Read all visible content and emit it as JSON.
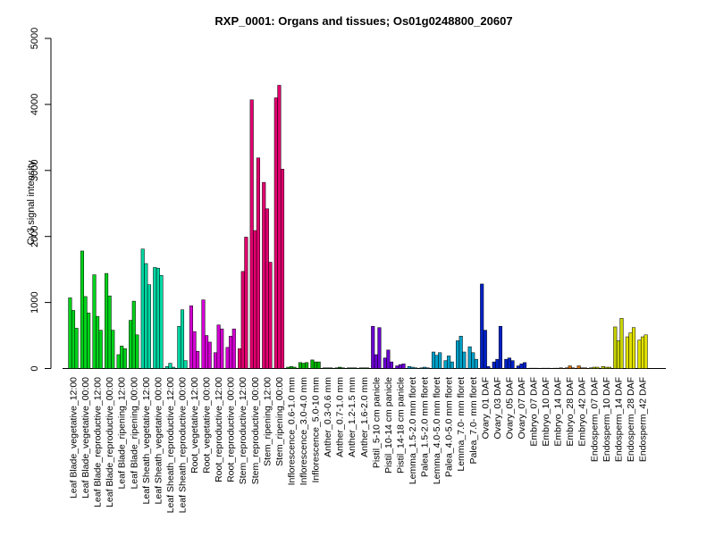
{
  "chart_data": {
    "type": "bar",
    "title": "RXP_0001: Organs and tissues; Os01g0248800_20607",
    "xlabel": "",
    "ylabel": "Cy3 signal intensity",
    "ylim": [
      0,
      5000
    ],
    "yticks": [
      0,
      1000,
      2000,
      3000,
      4000,
      5000
    ],
    "grid": false,
    "groups": [
      {
        "label": "Leaf Blade_vegetative_12:00",
        "color": "#00d21a",
        "values": [
          1070,
          880,
          610
        ]
      },
      {
        "label": "Leaf Blade_vegetative_00:00",
        "color": "#00d21a",
        "values": [
          1780,
          1090,
          840
        ]
      },
      {
        "label": "Leaf Blade_reproductive_12:00",
        "color": "#00d21a",
        "values": [
          1420,
          790,
          580
        ]
      },
      {
        "label": "Leaf Blade_reproductive_00:00",
        "color": "#00d21a",
        "values": [
          1440,
          1100,
          580
        ]
      },
      {
        "label": "Leaf Blade_ripening_12:00",
        "color": "#00d21a",
        "values": [
          210,
          340,
          300
        ]
      },
      {
        "label": "Leaf Blade_ripening_00:00",
        "color": "#00d21a",
        "values": [
          730,
          1020,
          510
        ]
      },
      {
        "label": "Leaf Sheath_vegetative_12:00",
        "color": "#00d6a2",
        "values": [
          1810,
          1590,
          1270
        ]
      },
      {
        "label": "Leaf Sheath_vegetative_00:00",
        "color": "#00d6a2",
        "values": [
          1530,
          1520,
          1410
        ]
      },
      {
        "label": "Leaf Sheath_reproductive_12:00",
        "color": "#00d6a2",
        "values": [
          30,
          80,
          20
        ]
      },
      {
        "label": "Leaf Sheath_reproductive_00:00",
        "color": "#00d6a2",
        "values": [
          640,
          890,
          120
        ]
      },
      {
        "label": "Root_vegetative_12:00",
        "color": "#d200d2",
        "values": [
          950,
          560,
          260
        ]
      },
      {
        "label": "Root_vegetative_00:00",
        "color": "#d200d2",
        "values": [
          1040,
          500,
          400
        ]
      },
      {
        "label": "Root_reproductive_12:00",
        "color": "#d200d2",
        "values": [
          240,
          660,
          600
        ]
      },
      {
        "label": "Root_reproductive_00:00",
        "color": "#d200d2",
        "values": [
          320,
          490,
          600
        ]
      },
      {
        "label": "Stem_reproductive_12:00",
        "color": "#e2006f",
        "values": [
          300,
          1470,
          1990
        ]
      },
      {
        "label": "Stem_reproductive_00:00",
        "color": "#e2006f",
        "values": [
          4070,
          2090,
          3190
        ]
      },
      {
        "label": "Stem_ripening_12:00",
        "color": "#e2006f",
        "values": [
          2820,
          2420,
          1610
        ]
      },
      {
        "label": "Stem_ripening_00:00",
        "color": "#e2006f",
        "values": [
          4100,
          4290,
          3020
        ]
      },
      {
        "label": "Inflorescence_0.6-1.0 mm",
        "color": "#00b000",
        "values": [
          20,
          30,
          20
        ]
      },
      {
        "label": "Inflorescence_3.0-4.0 mm",
        "color": "#00b000",
        "values": [
          90,
          80,
          90
        ]
      },
      {
        "label": "Inflorescence_5.0-10 mm",
        "color": "#00b000",
        "values": [
          130,
          100,
          100
        ]
      },
      {
        "label": "Anther_0.3-0.6 mm",
        "color": "#008000",
        "values": [
          10,
          10,
          10
        ]
      },
      {
        "label": "Anther_0.7-1.0 mm",
        "color": "#008000",
        "values": [
          10,
          20,
          10
        ]
      },
      {
        "label": "Anther_1.2-1.5 mm",
        "color": "#008000",
        "values": [
          10,
          10,
          10
        ]
      },
      {
        "label": "Anther_1.6-2.0 mm",
        "color": "#008000",
        "values": [
          10,
          10,
          10
        ]
      },
      {
        "label": "Pistil_5-10 cm panicle",
        "color": "#6a00d2",
        "values": [
          640,
          210,
          620
        ]
      },
      {
        "label": "Pistil_10-14 cm panicle",
        "color": "#6a00d2",
        "values": [
          160,
          280,
          100
        ]
      },
      {
        "label": "Pistil_14-18 cm panicle",
        "color": "#6a00d2",
        "values": [
          40,
          60,
          70
        ]
      },
      {
        "label": "Lemma_1.5-2.0 mm floret",
        "color": "#00a0c8",
        "values": [
          30,
          20,
          10
        ]
      },
      {
        "label": "Palea_1.5-2.0 mm floret",
        "color": "#00a0c8",
        "values": [
          10,
          20,
          10
        ]
      },
      {
        "label": "Lemma_4.0-5.0 mm floret",
        "color": "#00a0c8",
        "values": [
          250,
          200,
          240
        ]
      },
      {
        "label": "Palea_4.0-5.0 mm floret",
        "color": "#00a0c8",
        "values": [
          120,
          190,
          100
        ]
      },
      {
        "label": "Lemma_7.0- mm floret",
        "color": "#00a0c8",
        "values": [
          420,
          490,
          250
        ]
      },
      {
        "label": "Palea_7.0- mm floret",
        "color": "#00a0c8",
        "values": [
          330,
          240,
          140
        ]
      },
      {
        "label": "Ovary_01 DAF",
        "color": "#0022c8",
        "values": [
          1280,
          580,
          30
        ]
      },
      {
        "label": "Ovary_03 DAF",
        "color": "#0022c8",
        "values": [
          100,
          140,
          640
        ]
      },
      {
        "label": "Ovary_05 DAF",
        "color": "#0022c8",
        "values": [
          140,
          160,
          120
        ]
      },
      {
        "label": "Ovary_07 DAF",
        "color": "#0022c8",
        "values": [
          40,
          70,
          90
        ]
      },
      {
        "label": "Embryo_07 DAF",
        "color": "#d87000",
        "values": [
          5,
          5,
          5
        ]
      },
      {
        "label": "Embryo_10 DAF",
        "color": "#d87000",
        "values": [
          5,
          5,
          5
        ]
      },
      {
        "label": "Embryo_14 DAF",
        "color": "#d87000",
        "values": [
          5,
          5,
          10
        ]
      },
      {
        "label": "Embryo_28 DAF",
        "color": "#d87000",
        "values": [
          10,
          40,
          10
        ]
      },
      {
        "label": "Embryo_42 DAF",
        "color": "#d87000",
        "values": [
          40,
          10,
          10
        ]
      },
      {
        "label": "Endosperm_07 DAF",
        "color": "#c8d200",
        "values": [
          10,
          20,
          20
        ]
      },
      {
        "label": "Endosperm_10 DAF",
        "color": "#c8d200",
        "values": [
          30,
          20,
          20
        ]
      },
      {
        "label": "Endosperm_14 DAF",
        "color": "#c8d200",
        "values": [
          630,
          420,
          760
        ]
      },
      {
        "label": "Endosperm_28 DAF",
        "color": "#e1e100",
        "values": [
          480,
          540,
          620
        ]
      },
      {
        "label": "Endosperm_42 DAF",
        "color": "#e1e100",
        "values": [
          430,
          480,
          510
        ]
      }
    ]
  }
}
